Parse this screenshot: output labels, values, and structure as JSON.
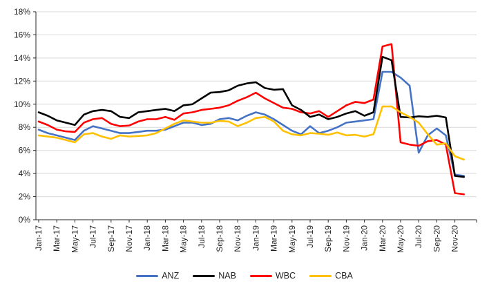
{
  "chart_data": {
    "type": "line",
    "title": "",
    "xlabel": "",
    "ylabel": "",
    "grid": true,
    "legend_position": "bottom",
    "y_axis": {
      "min": 0,
      "max": 18,
      "step": 2,
      "tick_labels": [
        "0%",
        "2%",
        "4%",
        "6%",
        "8%",
        "10%",
        "12%",
        "14%",
        "16%",
        "18%"
      ]
    },
    "x_tick_label_every": 2,
    "x": [
      "Jan-17",
      "Feb-17",
      "Mar-17",
      "Apr-17",
      "May-17",
      "Jun-17",
      "Jul-17",
      "Aug-17",
      "Sep-17",
      "Oct-17",
      "Nov-17",
      "Dec-17",
      "Jan-18",
      "Feb-18",
      "Mar-18",
      "Apr-18",
      "May-18",
      "Jun-18",
      "Jul-18",
      "Aug-18",
      "Sep-18",
      "Oct-18",
      "Nov-18",
      "Dec-18",
      "Jan-19",
      "Feb-19",
      "Mar-19",
      "Apr-19",
      "May-19",
      "Jun-19",
      "Jul-19",
      "Aug-19",
      "Sep-19",
      "Oct-19",
      "Nov-19",
      "Dec-19",
      "Jan-20",
      "Feb-20",
      "Mar-20",
      "Apr-20",
      "May-20",
      "Jun-20",
      "Jul-20",
      "Aug-20",
      "Sep-20",
      "Oct-20",
      "Nov-20",
      "Dec-20"
    ],
    "series": [
      {
        "name": "ANZ",
        "color": "#4472C4",
        "values": [
          7.8,
          7.5,
          7.3,
          7.1,
          6.9,
          7.7,
          8.1,
          7.9,
          7.7,
          7.5,
          7.5,
          7.6,
          7.7,
          7.7,
          7.8,
          8.1,
          8.4,
          8.4,
          8.2,
          8.3,
          8.7,
          8.8,
          8.6,
          9.0,
          9.3,
          9.1,
          8.7,
          8.2,
          7.7,
          7.4,
          8.1,
          7.5,
          7.7,
          8.0,
          8.4,
          8.5,
          8.6,
          8.7,
          12.8,
          12.8,
          12.3,
          11.6,
          5.8,
          7.3,
          7.9,
          7.3,
          3.9,
          3.8
        ]
      },
      {
        "name": "NAB",
        "color": "#000000",
        "values": [
          9.3,
          9.0,
          8.6,
          8.4,
          8.2,
          9.1,
          9.4,
          9.5,
          9.4,
          8.9,
          8.8,
          9.3,
          9.4,
          9.5,
          9.6,
          9.4,
          9.9,
          10.0,
          10.5,
          11.0,
          11.05,
          11.2,
          11.6,
          11.8,
          11.9,
          11.4,
          11.25,
          11.3,
          9.9,
          9.5,
          8.9,
          9.1,
          8.7,
          8.9,
          9.2,
          9.4,
          9.0,
          9.3,
          14.1,
          13.8,
          8.9,
          8.85,
          8.95,
          8.9,
          9.0,
          8.85,
          3.8,
          3.7
        ]
      },
      {
        "name": "WBC",
        "color": "#FF0000",
        "values": [
          8.5,
          8.2,
          7.8,
          7.65,
          7.6,
          8.4,
          8.7,
          8.8,
          8.3,
          8.1,
          8.15,
          8.5,
          8.7,
          8.7,
          8.9,
          8.65,
          9.2,
          9.3,
          9.5,
          9.6,
          9.7,
          9.9,
          10.3,
          10.6,
          11.0,
          10.5,
          10.1,
          9.7,
          9.6,
          9.3,
          9.2,
          9.4,
          8.9,
          9.4,
          9.9,
          10.2,
          10.1,
          10.4,
          15.0,
          15.2,
          6.7,
          6.5,
          6.4,
          6.8,
          6.9,
          6.5,
          2.3,
          2.2
        ]
      },
      {
        "name": "CBA",
        "color": "#FFC000",
        "values": [
          7.3,
          7.2,
          7.1,
          6.9,
          6.7,
          7.4,
          7.5,
          7.2,
          7.0,
          7.3,
          7.2,
          7.25,
          7.3,
          7.5,
          7.9,
          8.3,
          8.6,
          8.5,
          8.4,
          8.4,
          8.55,
          8.5,
          8.1,
          8.4,
          8.8,
          8.9,
          8.5,
          7.7,
          7.4,
          7.3,
          7.5,
          7.45,
          7.35,
          7.55,
          7.3,
          7.35,
          7.2,
          7.4,
          9.8,
          9.8,
          9.3,
          8.9,
          8.4,
          7.4,
          6.5,
          6.6,
          5.5,
          5.2
        ]
      }
    ],
    "style": {
      "gridline_color": "#D9D9D9",
      "axis_color": "#262626",
      "line_width": 2.6
    }
  }
}
